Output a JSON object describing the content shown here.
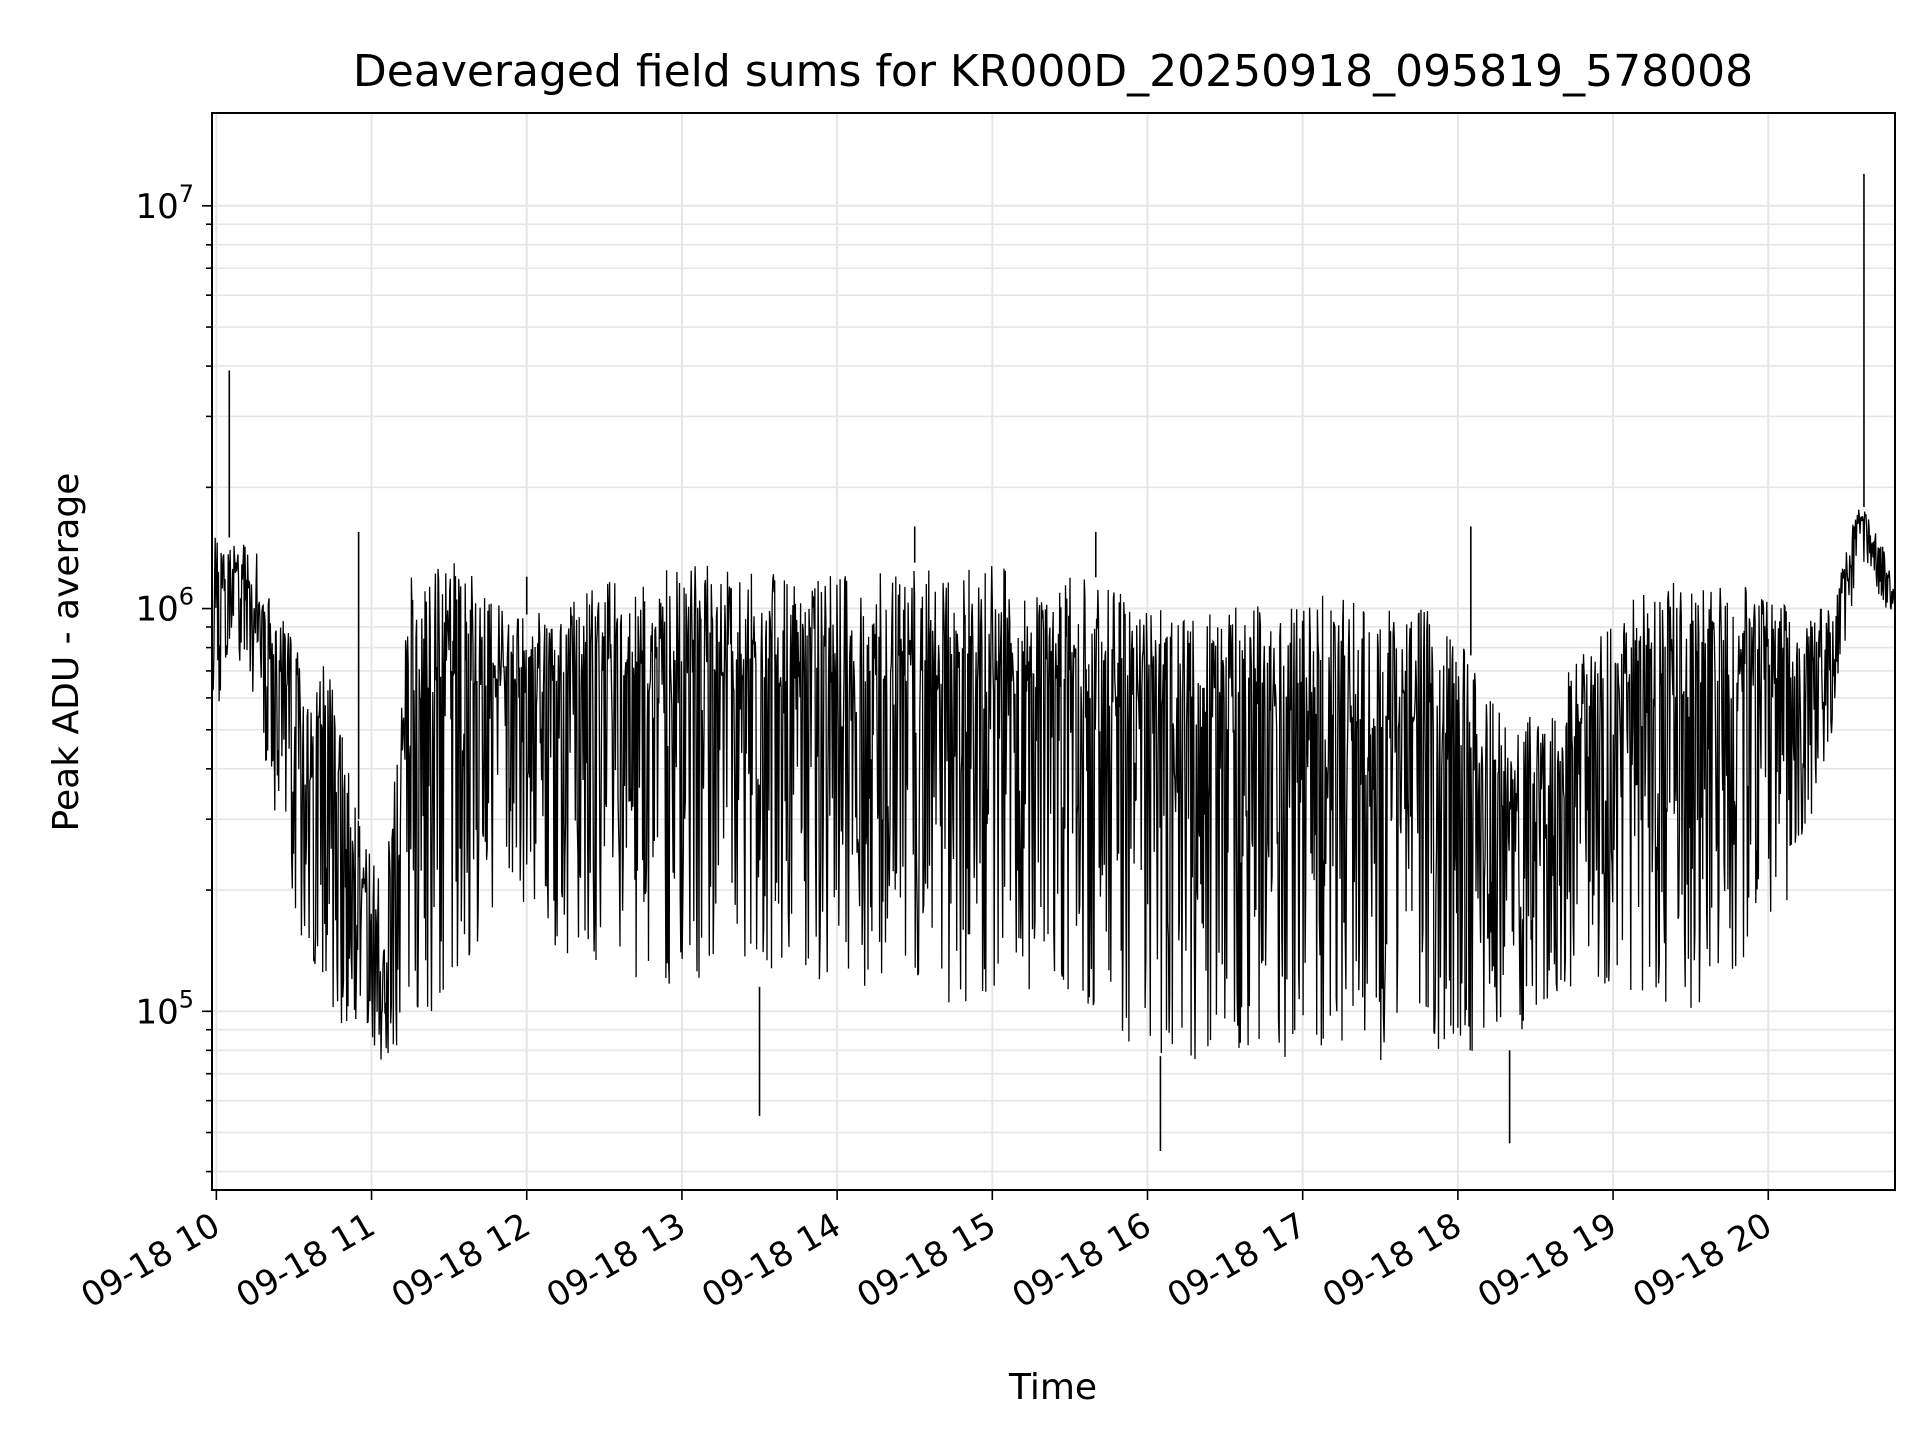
{
  "chart_data": {
    "type": "line",
    "title": "Deaveraged field sums for KR000D_20250918_095819_578008",
    "xlabel": "Time",
    "ylabel": "Peak ADU - average",
    "y_scale": "log",
    "ylim": [
      36000,
      17000000
    ],
    "xlim": [
      "2025-09-18 09:58:19",
      "2025-09-18 20:49:00"
    ],
    "x_ticks": [
      "09-18 10",
      "09-18 11",
      "09-18 12",
      "09-18 13",
      "09-18 14",
      "09-18 15",
      "09-18 16",
      "09-18 17",
      "09-18 18",
      "09-18 19",
      "09-18 20"
    ],
    "y_ticks": [
      {
        "base": "10",
        "exp": "5"
      },
      {
        "base": "10",
        "exp": "6"
      },
      {
        "base": "10",
        "exp": "7"
      }
    ],
    "grid": true,
    "line_color": "#000000",
    "series": [
      {
        "x": [
          "09:58",
          "10:05",
          "10:15",
          "10:25",
          "10:35",
          "10:45",
          "10:55",
          "11:05",
          "11:15",
          "11:25",
          "11:35",
          "11:45",
          "11:55",
          "12:10",
          "12:30",
          "12:50",
          "13:10",
          "13:30",
          "13:50",
          "14:10",
          "14:30",
          "14:50",
          "15:10",
          "15:30",
          "15:50",
          "16:10",
          "16:30",
          "16:50",
          "17:10",
          "17:30",
          "17:50",
          "18:10",
          "18:20",
          "18:30",
          "18:50",
          "19:10",
          "19:30",
          "19:50",
          "20:10",
          "20:25",
          "20:35",
          "20:45",
          "20:49"
        ],
        "y_upper": [
          1500000,
          1500000,
          1400000,
          1000000,
          900000,
          650000,
          300000,
          200000,
          1200000,
          1300000,
          1300000,
          1100000,
          950000,
          1000000,
          1200000,
          1250000,
          1300000,
          1250000,
          1200000,
          1250000,
          1300000,
          1300000,
          1250000,
          1300000,
          1100000,
          1000000,
          1000000,
          1050000,
          1100000,
          1000000,
          1000000,
          700000,
          500000,
          550000,
          800000,
          1100000,
          1200000,
          1150000,
          1000000,
          1000000,
          1900000,
          1400000,
          1100000
        ],
        "y_lower": [
          450000,
          800000,
          600000,
          250000,
          130000,
          100000,
          80000,
          75000,
          80000,
          90000,
          120000,
          150000,
          200000,
          140000,
          130000,
          110000,
          110000,
          115000,
          120000,
          115000,
          110000,
          100000,
          95000,
          110000,
          85000,
          75000,
          75000,
          75000,
          70000,
          75000,
          80000,
          75000,
          80000,
          100000,
          120000,
          110000,
          100000,
          130000,
          200000,
          500000,
          1300000,
          1000000,
          900000
        ],
        "spikes": [
          {
            "x": "10:05",
            "y": 3900000
          },
          {
            "x": "10:55",
            "y": 1550000
          },
          {
            "x": "12:00",
            "y": 1200000
          },
          {
            "x": "13:30",
            "y": 55000
          },
          {
            "x": "14:30",
            "y": 1600000
          },
          {
            "x": "15:40",
            "y": 1550000
          },
          {
            "x": "16:05",
            "y": 45000
          },
          {
            "x": "18:05",
            "y": 1600000
          },
          {
            "x": "18:20",
            "y": 47000
          },
          {
            "x": "20:37",
            "y": 12000000
          }
        ]
      }
    ]
  }
}
